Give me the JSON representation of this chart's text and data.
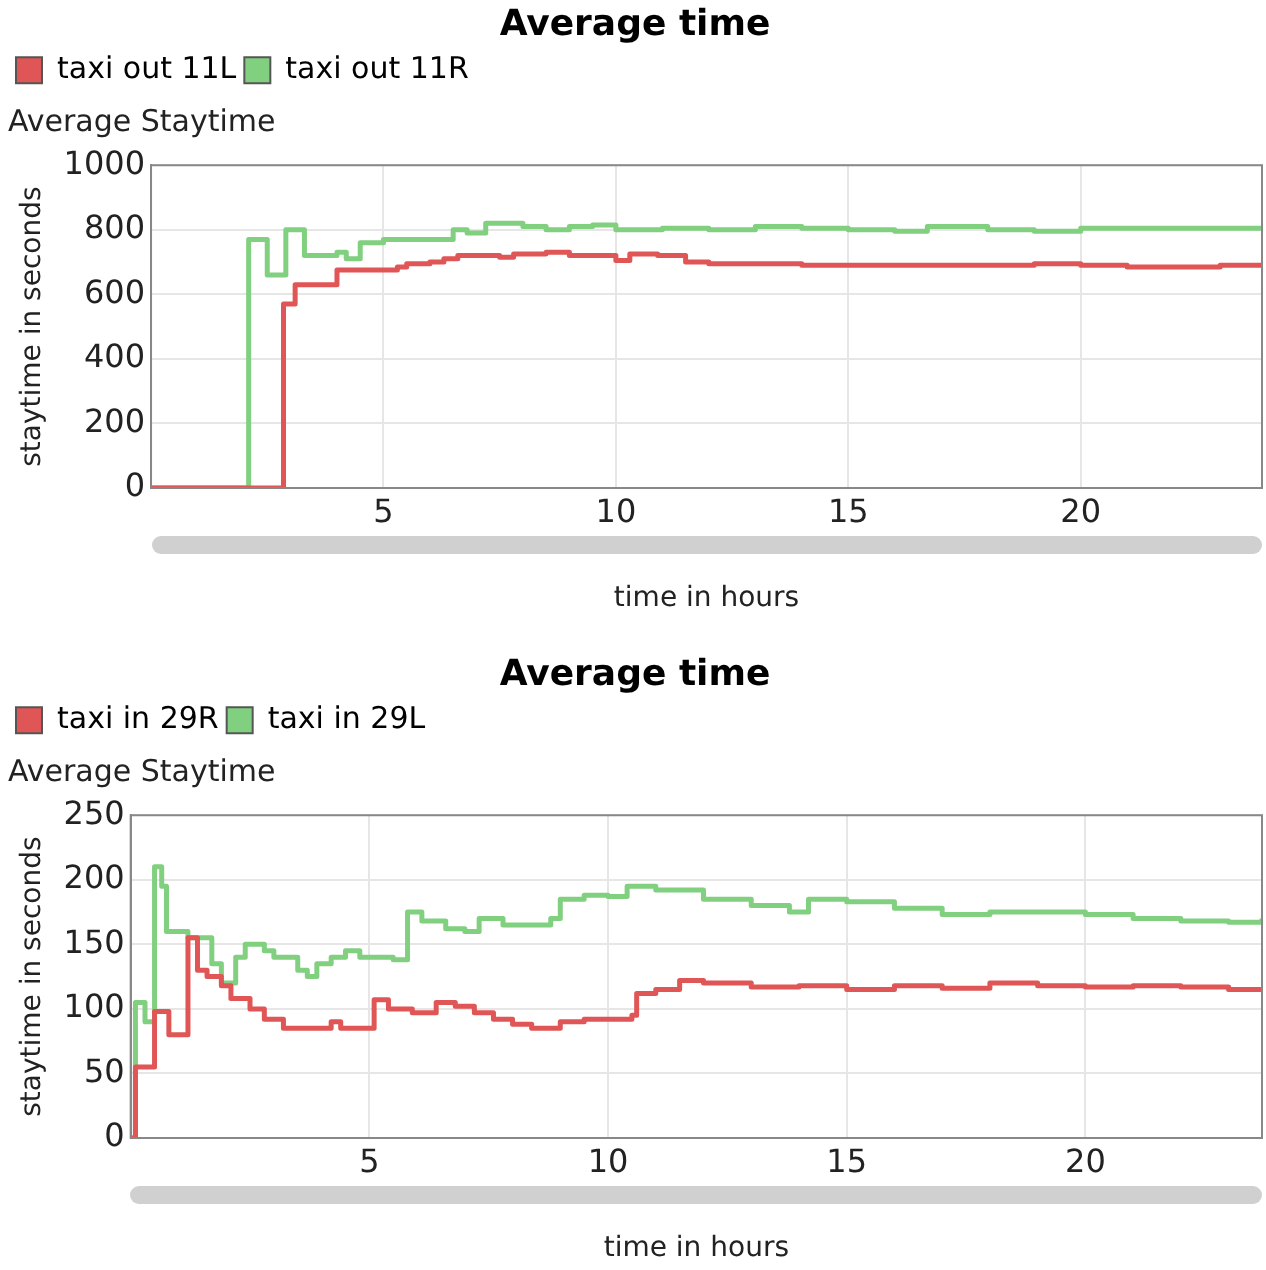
{
  "chart_data": [
    {
      "type": "step",
      "title": "Average time",
      "subtitle": "Average Staytime",
      "xlabel": "time in hours",
      "ylabel": "staytime in seconds",
      "xlim": [
        0,
        23.9
      ],
      "xticks": [
        {
          "value": 0,
          "label": null
        },
        5,
        10,
        15,
        20
      ],
      "ylim": [
        0,
        1000
      ],
      "yticks": [
        0,
        200,
        400,
        600,
        800,
        1000
      ],
      "grid": true,
      "legend": "top left",
      "marker": "none",
      "series": [
        {
          "name": "taxi out 11L",
          "color": "#e05555",
          "x": [
            0,
            2.85,
            3.1,
            4.0,
            5.3,
            5.5,
            6.0,
            6.3,
            6.6,
            7.5,
            7.8,
            8.5,
            9.0,
            9.7,
            10.0,
            10.3,
            10.9,
            11.5,
            12,
            14,
            17,
            19,
            20,
            21,
            23,
            23.9
          ],
          "values": [
            0,
            570,
            630,
            675,
            685,
            695,
            700,
            710,
            720,
            715,
            725,
            730,
            720,
            720,
            705,
            725,
            720,
            700,
            695,
            690,
            690,
            695,
            690,
            685,
            690,
            690
          ]
        },
        {
          "name": "taxi out 11R",
          "color": "#80d080",
          "x": [
            0,
            2.1,
            2.5,
            2.9,
            3.3,
            4.0,
            4.2,
            4.5,
            5.0,
            6.3,
            6.5,
            6.8,
            7.2,
            8.0,
            8.5,
            9.0,
            9.5,
            10.0,
            11,
            12,
            13,
            14,
            15,
            16,
            16.7,
            18,
            19,
            20,
            22,
            23.9
          ],
          "values": [
            0,
            770,
            660,
            800,
            720,
            730,
            710,
            760,
            770,
            770,
            800,
            790,
            820,
            810,
            800,
            810,
            815,
            800,
            805,
            800,
            810,
            805,
            800,
            795,
            810,
            800,
            795,
            805,
            805,
            800
          ]
        }
      ]
    },
    {
      "type": "step",
      "title": "Average time",
      "subtitle": "Average Staytime",
      "xlabel": "time in hours",
      "ylabel": "staytime in seconds",
      "xlim": [
        0,
        23.7
      ],
      "xticks": [
        {
          "value": 0,
          "label": null
        },
        5,
        10,
        15,
        20
      ],
      "ylim": [
        0,
        250
      ],
      "yticks": [
        0,
        50,
        100,
        150,
        200,
        250
      ],
      "grid": true,
      "legend": "top left",
      "marker": "none",
      "series": [
        {
          "name": "taxi in 29R",
          "color": "#e05555",
          "x": [
            0,
            0.1,
            0.5,
            0.8,
            1.2,
            1.4,
            1.6,
            1.9,
            2.1,
            2.5,
            2.8,
            3.2,
            4.0,
            4.2,
            4.4,
            5.0,
            5.1,
            5.4,
            5.9,
            6.4,
            6.8,
            7.2,
            7.6,
            8.0,
            8.4,
            9.0,
            9.5,
            10.5,
            10.6,
            11,
            11.5,
            12,
            13,
            14,
            15,
            16,
            17,
            18,
            19,
            20,
            21,
            22,
            23,
            23.7
          ],
          "values": [
            0,
            55,
            98,
            80,
            155,
            130,
            125,
            118,
            108,
            100,
            92,
            85,
            85,
            90,
            85,
            85,
            107,
            100,
            97,
            105,
            102,
            97,
            92,
            88,
            85,
            90,
            92,
            95,
            112,
            115,
            122,
            120,
            117,
            118,
            115,
            118,
            116,
            120,
            118,
            117,
            118,
            117,
            115,
            113
          ]
        },
        {
          "name": "taxi in 29L",
          "color": "#80d080",
          "x": [
            0,
            0.1,
            0.3,
            0.5,
            0.65,
            0.75,
            1.2,
            1.7,
            1.9,
            2.2,
            2.4,
            2.8,
            3.0,
            3.5,
            3.7,
            3.9,
            4.2,
            4.5,
            4.8,
            5.5,
            5.8,
            6.1,
            6.6,
            7.0,
            7.3,
            7.8,
            8.3,
            8.8,
            9.0,
            9.5,
            10.0,
            10.4,
            11,
            12,
            13,
            13.8,
            14.2,
            15,
            16,
            17,
            18,
            19,
            20,
            21,
            22,
            23,
            23.7
          ],
          "values": [
            0,
            105,
            90,
            210,
            195,
            160,
            155,
            135,
            120,
            140,
            150,
            145,
            140,
            130,
            125,
            135,
            140,
            145,
            140,
            138,
            175,
            168,
            162,
            160,
            170,
            165,
            165,
            170,
            185,
            188,
            187,
            195,
            192,
            185,
            180,
            175,
            185,
            183,
            178,
            173,
            175,
            175,
            173,
            170,
            168,
            167,
            170
          ]
        }
      ]
    }
  ]
}
